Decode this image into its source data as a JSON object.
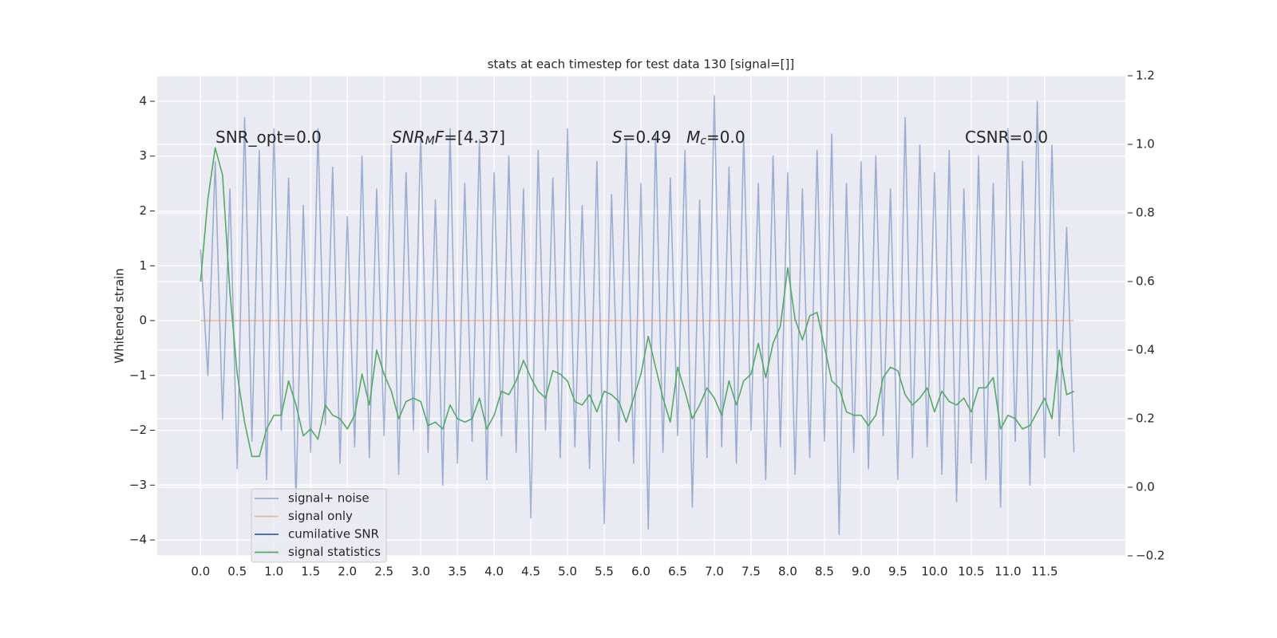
{
  "chart_data": {
    "type": "line",
    "title": "stats at each timestep for test data 130 [signal=[]]",
    "ylabel": "Whitened strain",
    "annotations": [
      {
        "parts": [
          {
            "text": "SNR_opt=0.0"
          }
        ]
      },
      {
        "parts": [
          {
            "text": "SNR",
            "style": "italic"
          },
          {
            "text": "M",
            "style": "italic-sub"
          },
          {
            "text": "F",
            "style": "italic"
          },
          {
            "text": "=[4.37]"
          }
        ]
      },
      {
        "parts": [
          {
            "text": "S",
            "style": "italic"
          },
          {
            "text": "=0.49   "
          },
          {
            "text": "M",
            "style": "italic"
          },
          {
            "text": "c",
            "style": "italic-sub"
          },
          {
            "text": "=0.0"
          }
        ]
      },
      {
        "parts": [
          {
            "text": "CSNR=0.0"
          }
        ]
      }
    ],
    "x": [
      0,
      0.1,
      0.2,
      0.3,
      0.4,
      0.5,
      0.6,
      0.7,
      0.8,
      0.9,
      1,
      1.1,
      1.2,
      1.3,
      1.4,
      1.5,
      1.6,
      1.7,
      1.8,
      1.9,
      2,
      2.1,
      2.2,
      2.3,
      2.4,
      2.5,
      2.6,
      2.7,
      2.8,
      2.9,
      3,
      3.1,
      3.2,
      3.3,
      3.4,
      3.5,
      3.6,
      3.7,
      3.8,
      3.9,
      4,
      4.1,
      4.2,
      4.3,
      4.4,
      4.5,
      4.6,
      4.7,
      4.8,
      4.9,
      5,
      5.1,
      5.2,
      5.3,
      5.4,
      5.5,
      5.6,
      5.7,
      5.8,
      5.9,
      6,
      6.1,
      6.2,
      6.3,
      6.4,
      6.5,
      6.6,
      6.7,
      6.8,
      6.9,
      7,
      7.1,
      7.2,
      7.3,
      7.4,
      7.5,
      7.6,
      7.7,
      7.8,
      7.9,
      8,
      8.1,
      8.2,
      8.3,
      8.4,
      8.5,
      8.6,
      8.7,
      8.8,
      8.9,
      9,
      9.1,
      9.2,
      9.3,
      9.4,
      9.5,
      9.6,
      9.7,
      9.8,
      9.9,
      10,
      10.1,
      10.2,
      10.3,
      10.4,
      10.5,
      10.6,
      10.7,
      10.8,
      10.9,
      11,
      11.1,
      11.2,
      11.3,
      11.4,
      11.5,
      11.6,
      11.7,
      11.8,
      11.9
    ],
    "series": [
      {
        "name": "signal+ noise",
        "color": "#4c72b0",
        "opacity": 0.5,
        "values": [
          1.3,
          -1.0,
          2.9,
          -1.8,
          2.4,
          -2.7,
          3.7,
          -2.2,
          3.1,
          -2.9,
          3.5,
          -2.0,
          2.6,
          -3.3,
          2.1,
          -2.4,
          3.5,
          -1.9,
          2.8,
          -2.6,
          1.9,
          -2.3,
          3.0,
          -2.5,
          2.4,
          -2.1,
          3.2,
          -2.8,
          2.7,
          -2.0,
          3.4,
          -2.4,
          2.2,
          -3.0,
          3.5,
          -2.6,
          2.5,
          -2.2,
          3.3,
          -2.9,
          2.7,
          -2.1,
          3.0,
          -2.4,
          2.4,
          -3.6,
          3.1,
          -2.0,
          2.6,
          -2.5,
          3.5,
          -2.3,
          2.1,
          -2.7,
          2.9,
          -3.7,
          2.3,
          -2.2,
          3.3,
          -2.6,
          2.5,
          -3.8,
          3.4,
          -2.4,
          2.6,
          -2.1,
          3.1,
          -3.4,
          2.2,
          -2.5,
          4.1,
          -2.3,
          2.8,
          -2.6,
          3.4,
          -2.0,
          2.5,
          -2.9,
          3.0,
          -2.3,
          2.7,
          -2.8,
          2.4,
          -2.5,
          3.1,
          -2.2,
          3.4,
          -3.9,
          2.5,
          -2.4,
          2.9,
          -2.7,
          3.0,
          -2.1,
          2.4,
          -2.9,
          3.7,
          -2.5,
          3.2,
          -2.3,
          2.7,
          -2.8,
          3.1,
          -3.3,
          2.4,
          -2.6,
          3.0,
          -2.9,
          2.5,
          -3.4,
          3.5,
          -2.2,
          2.9,
          -3.0,
          4.0,
          -2.5,
          3.2,
          -2.1,
          1.7,
          -2.4
        ]
      },
      {
        "name": "signal only",
        "color": "#dd8452",
        "opacity": 0.5,
        "values": [
          0,
          0,
          0,
          0,
          0,
          0,
          0,
          0,
          0,
          0,
          0,
          0,
          0,
          0,
          0,
          0,
          0,
          0,
          0,
          0,
          0,
          0,
          0,
          0,
          0,
          0,
          0,
          0,
          0,
          0,
          0,
          0,
          0,
          0,
          0,
          0,
          0,
          0,
          0,
          0,
          0,
          0,
          0,
          0,
          0,
          0,
          0,
          0,
          0,
          0,
          0,
          0,
          0,
          0,
          0,
          0,
          0,
          0,
          0,
          0,
          0,
          0,
          0,
          0,
          0,
          0,
          0,
          0,
          0,
          0,
          0,
          0,
          0,
          0,
          0,
          0,
          0,
          0,
          0,
          0,
          0,
          0,
          0,
          0,
          0,
          0,
          0,
          0,
          0,
          0,
          0,
          0,
          0,
          0,
          0,
          0,
          0,
          0,
          0,
          0,
          0,
          0,
          0,
          0,
          0,
          0,
          0,
          0,
          0,
          0,
          0,
          0,
          0,
          0,
          0,
          0,
          0,
          0,
          0,
          0
        ]
      },
      {
        "name": "cumilative SNR",
        "color": "#3b5fa6",
        "opacity": 1
      },
      {
        "name": "signal statistics",
        "color": "#55a868",
        "opacity": 1,
        "axis": "y2",
        "values": [
          0.6,
          0.84,
          0.99,
          0.91,
          0.57,
          0.33,
          0.19,
          0.09,
          0.09,
          0.17,
          0.21,
          0.21,
          0.31,
          0.24,
          0.15,
          0.17,
          0.14,
          0.24,
          0.21,
          0.2,
          0.17,
          0.21,
          0.33,
          0.24,
          0.4,
          0.33,
          0.28,
          0.2,
          0.25,
          0.26,
          0.25,
          0.18,
          0.19,
          0.17,
          0.24,
          0.2,
          0.19,
          0.2,
          0.26,
          0.17,
          0.21,
          0.28,
          0.27,
          0.31,
          0.37,
          0.32,
          0.28,
          0.26,
          0.34,
          0.33,
          0.31,
          0.25,
          0.24,
          0.27,
          0.22,
          0.28,
          0.27,
          0.25,
          0.19,
          0.26,
          0.33,
          0.44,
          0.35,
          0.26,
          0.19,
          0.35,
          0.28,
          0.2,
          0.24,
          0.29,
          0.26,
          0.21,
          0.31,
          0.24,
          0.31,
          0.33,
          0.42,
          0.32,
          0.42,
          0.47,
          0.64,
          0.49,
          0.43,
          0.5,
          0.51,
          0.41,
          0.31,
          0.29,
          0.22,
          0.21,
          0.21,
          0.18,
          0.21,
          0.32,
          0.35,
          0.34,
          0.27,
          0.24,
          0.26,
          0.29,
          0.22,
          0.28,
          0.25,
          0.24,
          0.26,
          0.22,
          0.29,
          0.29,
          0.32,
          0.17,
          0.21,
          0.2,
          0.17,
          0.18,
          0.22,
          0.26,
          0.2,
          0.4,
          0.27,
          0.28
        ]
      }
    ],
    "xlim": [
      -0.59,
      12.6
    ],
    "xticks": [
      {
        "value": 0,
        "label": "0.0"
      },
      0.5,
      {
        "value": 1,
        "label": "1.0"
      },
      1.5,
      {
        "value": 2,
        "label": "2.0"
      },
      2.5,
      {
        "value": 3,
        "label": "3.0"
      },
      3.5,
      {
        "value": 4,
        "label": "4.0"
      },
      4.5,
      {
        "value": 5,
        "label": "5.0"
      },
      5.5,
      {
        "value": 6,
        "label": "6.0"
      },
      6.5,
      {
        "value": 7,
        "label": "7.0"
      },
      7.5,
      {
        "value": 8,
        "label": "8.0"
      },
      8.5,
      {
        "value": 9,
        "label": "9.0"
      },
      9.5,
      {
        "value": 10,
        "label": "10.0"
      },
      10.5,
      {
        "value": 11,
        "label": "11.0"
      },
      11.5
    ],
    "ylim": [
      -4.29,
      4.465
    ],
    "yticks": [
      {
        "value": -4,
        "label": "−4"
      },
      {
        "value": -3,
        "label": "−3"
      },
      {
        "value": -2,
        "label": "−2"
      },
      {
        "value": -1,
        "label": "−1"
      },
      0,
      1,
      2,
      3,
      4
    ],
    "y2lim": [
      -0.2,
      1.2
    ],
    "y2ticks": [
      {
        "value": -0.2,
        "label": "−0.2"
      },
      {
        "value": 0,
        "label": "0.0"
      },
      0.2,
      0.4,
      0.6,
      0.8,
      {
        "value": 1,
        "label": "1.0"
      },
      1.2
    ],
    "grid": true,
    "legend": "lower left"
  }
}
